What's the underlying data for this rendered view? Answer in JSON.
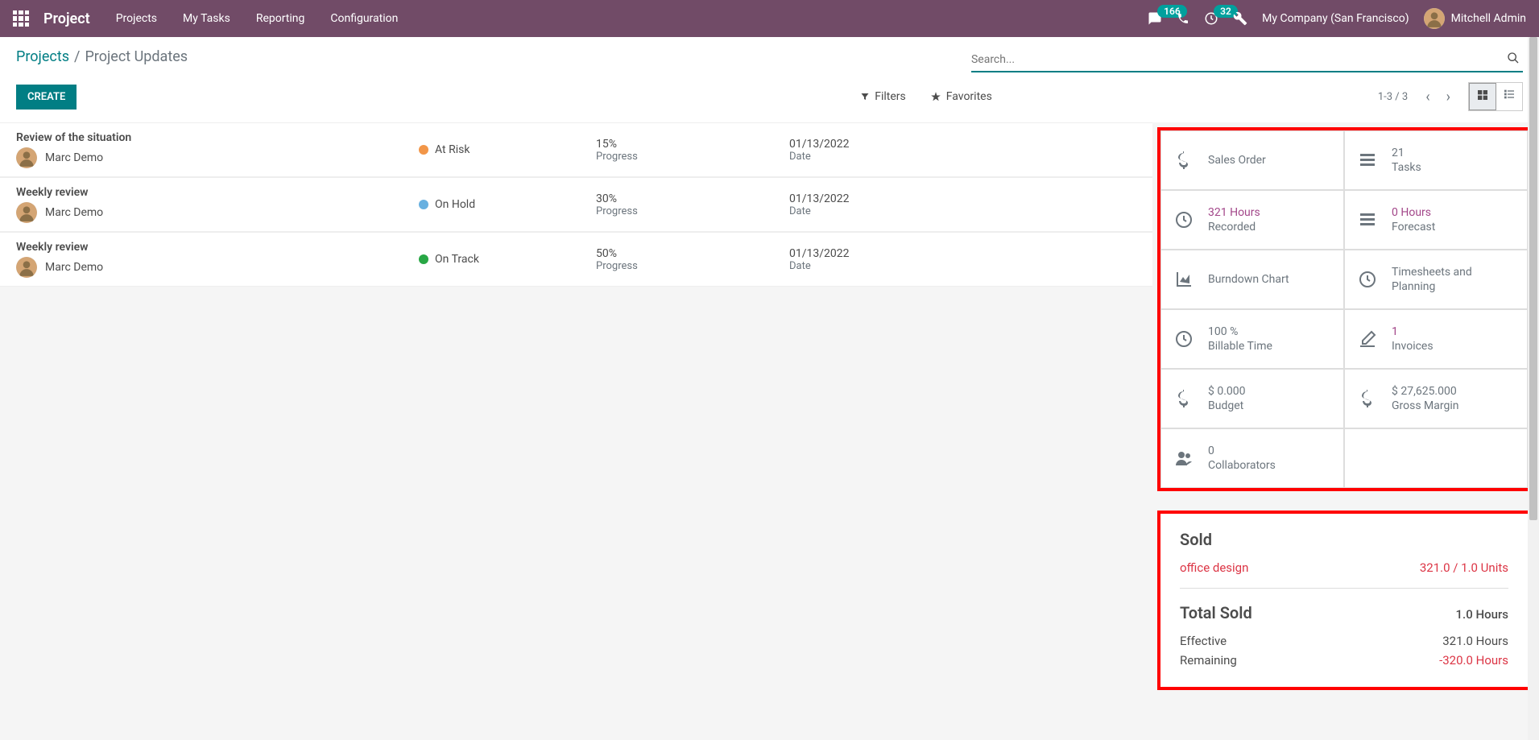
{
  "topnav": {
    "brand": "Project",
    "menu": [
      "Projects",
      "My Tasks",
      "Reporting",
      "Configuration"
    ],
    "messages_badge": "166",
    "activities_badge": "32",
    "company": "My Company (San Francisco)",
    "user": "Mitchell Admin"
  },
  "breadcrumb": {
    "root": "Projects",
    "sep": "/",
    "current": "Project Updates"
  },
  "controls": {
    "create": "CREATE",
    "search_placeholder": "Search...",
    "filters": "Filters",
    "favorites": "Favorites",
    "pager": "1-3 / 3"
  },
  "status_colors": {
    "at_risk": "#f29648",
    "on_hold": "#68b0e0",
    "on_track": "#28a745"
  },
  "rows": [
    {
      "title": "Review of the situation",
      "user": "Marc Demo",
      "status": "At Risk",
      "status_key": "at_risk",
      "progress": "15%",
      "progress_lbl": "Progress",
      "date": "01/13/2022",
      "date_lbl": "Date"
    },
    {
      "title": "Weekly review",
      "user": "Marc Demo",
      "status": "On Hold",
      "status_key": "on_hold",
      "progress": "30%",
      "progress_lbl": "Progress",
      "date": "01/13/2022",
      "date_lbl": "Date"
    },
    {
      "title": "Weekly review",
      "user": "Marc Demo",
      "status": "On Track",
      "status_key": "on_track",
      "progress": "50%",
      "progress_lbl": "Progress",
      "date": "01/13/2022",
      "date_lbl": "Date"
    }
  ],
  "stats": [
    {
      "icon": "dollar",
      "num": "",
      "lbl": "Sales Order",
      "accent": false
    },
    {
      "icon": "tasks",
      "num": "21",
      "lbl": "Tasks",
      "accent": false
    },
    {
      "icon": "clock",
      "num": "321 Hours",
      "lbl": "Recorded",
      "accent": true
    },
    {
      "icon": "tasks",
      "num": "0 Hours",
      "lbl": "Forecast",
      "accent": true
    },
    {
      "icon": "area",
      "num": "",
      "lbl": "Burndown Chart",
      "accent": false
    },
    {
      "icon": "clock2",
      "num": "",
      "lbl": "Timesheets and Planning",
      "accent": false
    },
    {
      "icon": "clock2",
      "num": "100 %",
      "lbl": "Billable Time",
      "accent": false
    },
    {
      "icon": "edit",
      "num": "1",
      "lbl": "Invoices",
      "accent": true
    },
    {
      "icon": "dollar",
      "num": "$ 0.000",
      "lbl": "Budget",
      "accent": false
    },
    {
      "icon": "dollar",
      "num": "$ 27,625.000",
      "lbl": "Gross Margin",
      "accent": false
    },
    {
      "icon": "users",
      "num": "0",
      "lbl": "Collaborators",
      "accent": false
    }
  ],
  "sold": {
    "title": "Sold",
    "item_name": "office design",
    "item_val": "321.0 / 1.0 Units",
    "total_title": "Total Sold",
    "total_val": "1.0 Hours",
    "effective_lbl": "Effective",
    "effective_val": "321.0 Hours",
    "remaining_lbl": "Remaining",
    "remaining_val": "-320.0 Hours"
  }
}
